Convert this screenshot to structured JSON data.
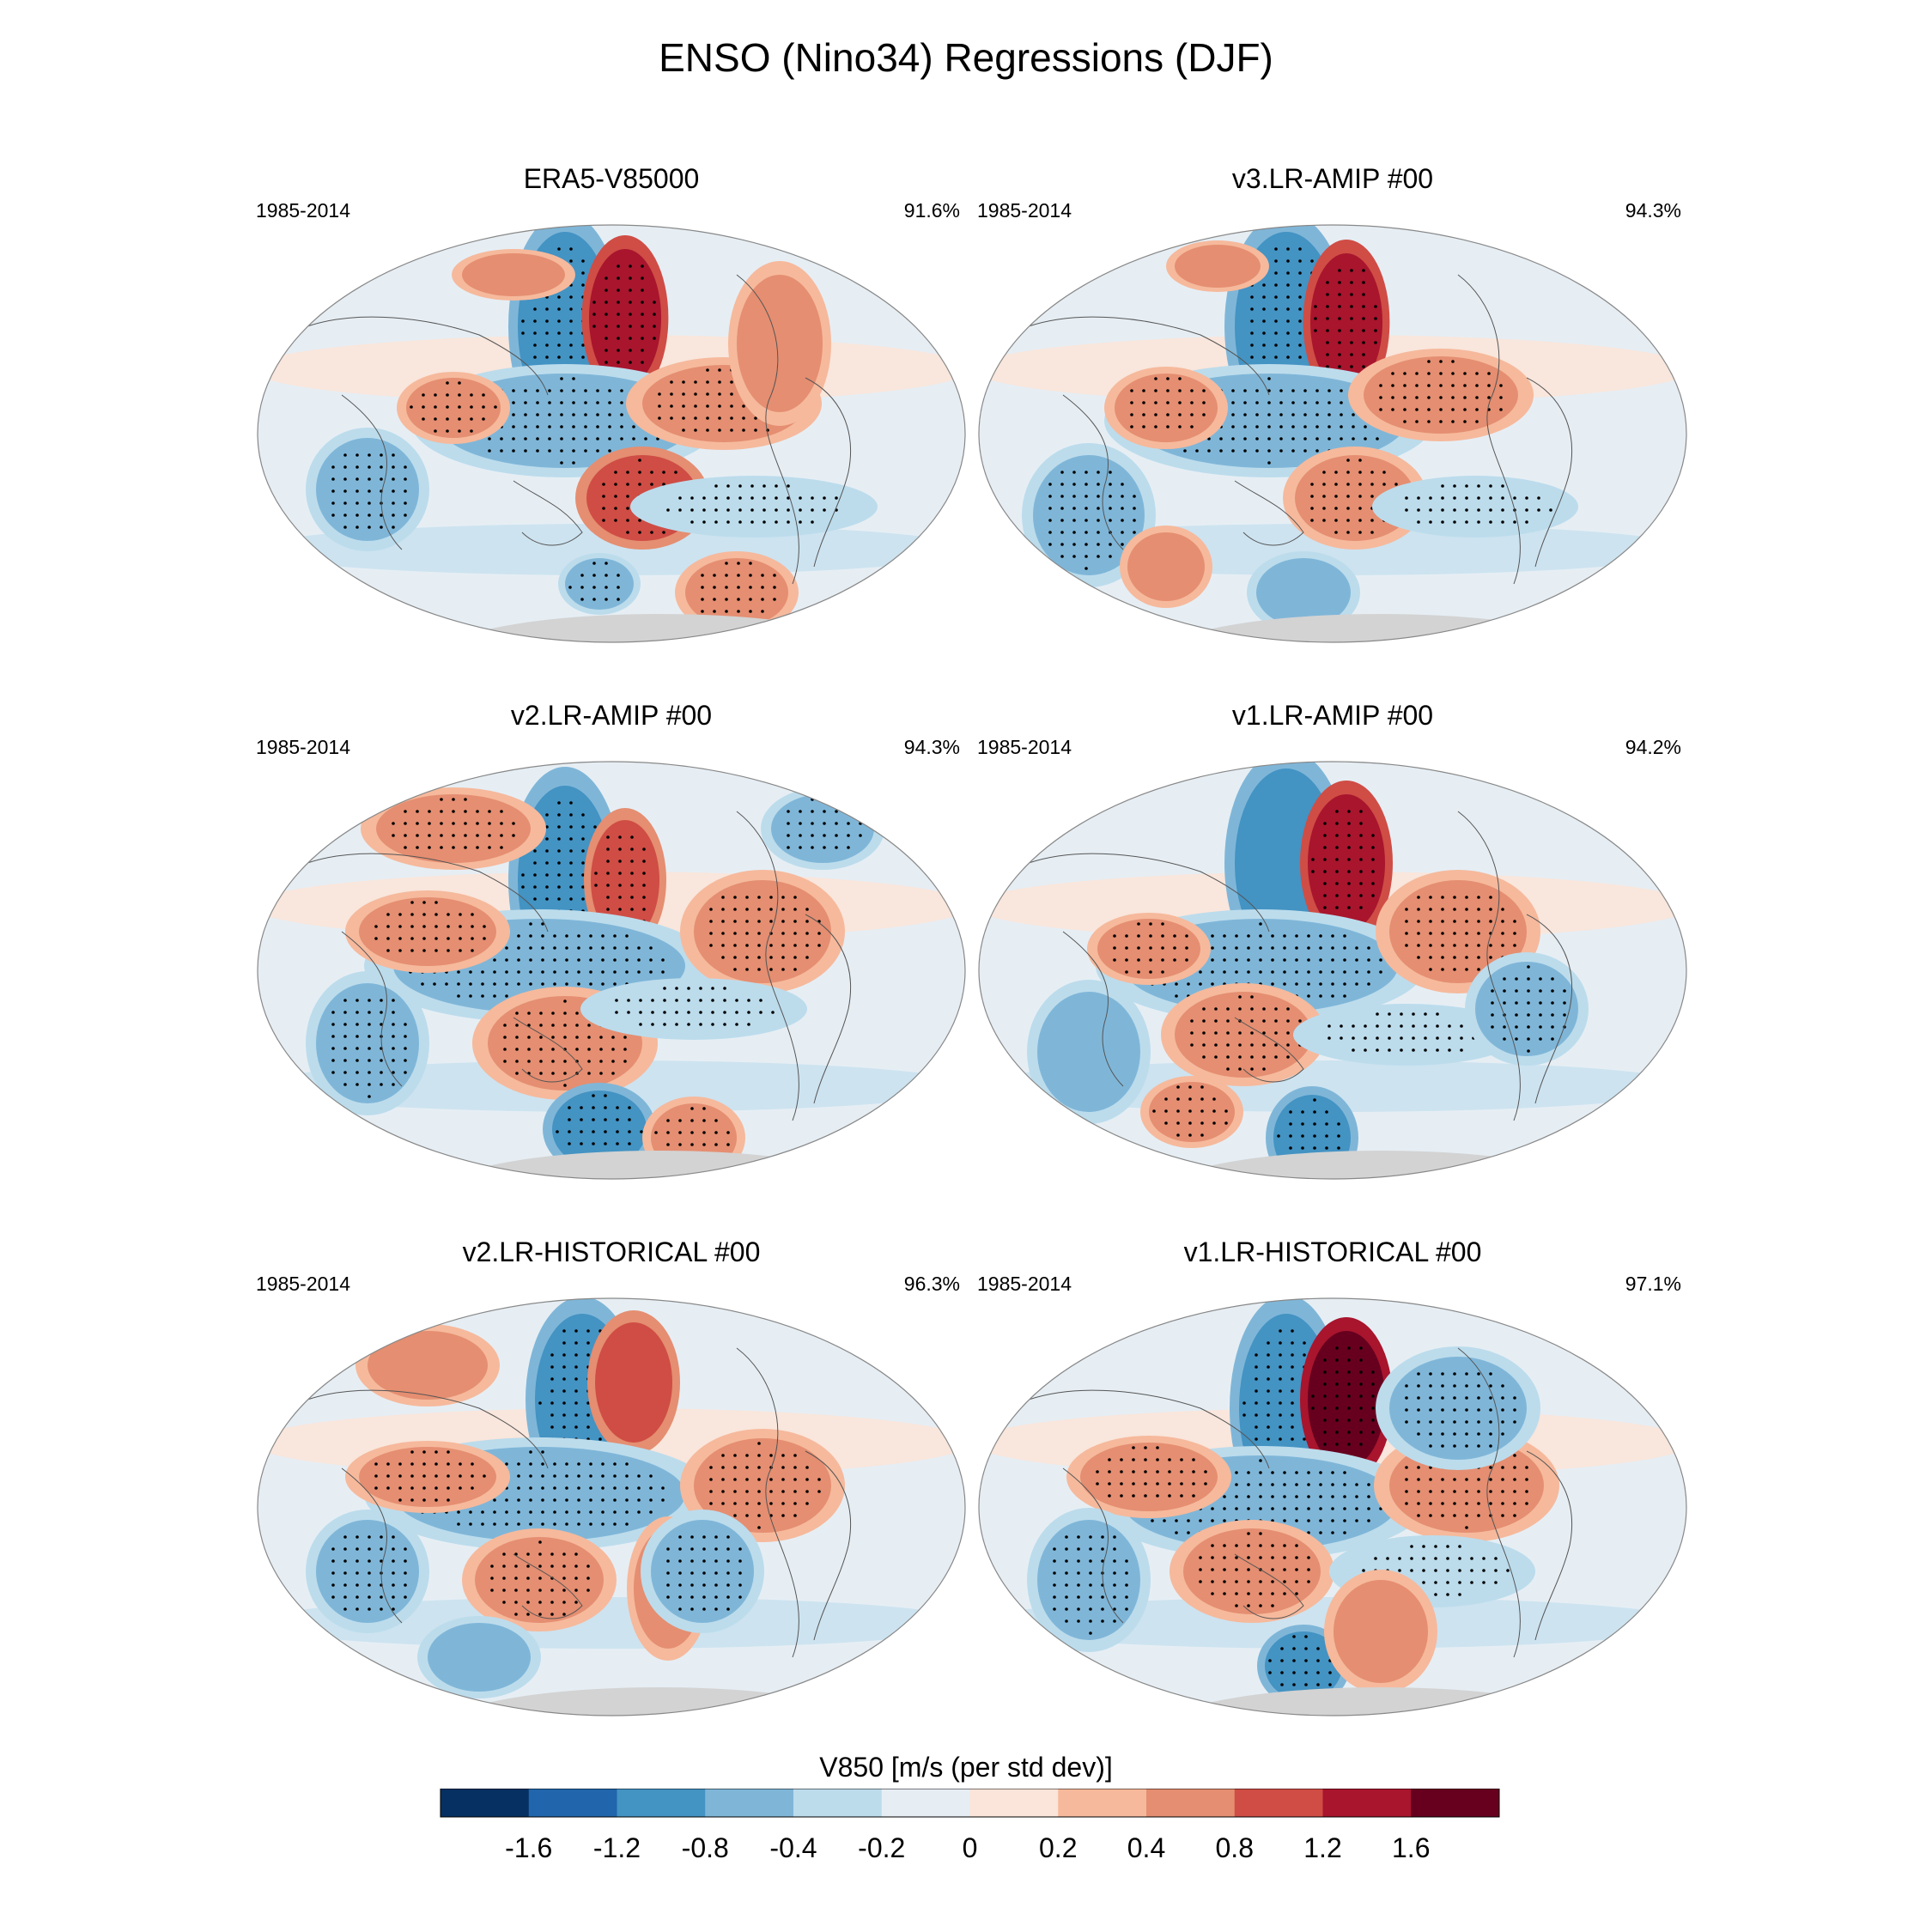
{
  "chart_data": {
    "type": "map-panels",
    "title": "ENSO (Nino34) Regressions (DJF)",
    "variable_label": "V850 [m/s (per std dev)]",
    "colorbar": {
      "levels": [
        -1.6,
        -1.2,
        -0.8,
        -0.4,
        -0.2,
        0,
        0.2,
        0.4,
        0.8,
        1.2,
        1.6
      ],
      "tick_labels": [
        "-1.6",
        "-1.2",
        "-0.8",
        "-0.4",
        "-0.2",
        "0",
        "0.2",
        "0.4",
        "0.8",
        "1.2",
        "1.6"
      ],
      "colors": [
        "#053061",
        "#2166ac",
        "#4393c3",
        "#7fb6d8",
        "#bcdcec",
        "#e6eef4",
        "#fbe4d9",
        "#f6b99c",
        "#e58e71",
        "#cf4d45",
        "#a8152d",
        "#67001f"
      ]
    },
    "panels": [
      {
        "title": "ERA5-V85000",
        "period": "1985-2014",
        "pattern_correlation": "91.6%"
      },
      {
        "title": "v3.LR-AMIP  #00",
        "period": "1985-2014",
        "pattern_correlation": "94.3%"
      },
      {
        "title": "v2.LR-AMIP  #00",
        "period": "1985-2014",
        "pattern_correlation": "94.3%"
      },
      {
        "title": "v1.LR-AMIP  #00",
        "period": "1985-2014",
        "pattern_correlation": "94.2%"
      },
      {
        "title": "v2.LR-HISTORICAL  #00",
        "period": "1985-2014",
        "pattern_correlation": "96.3%"
      },
      {
        "title": "v1.LR-HISTORICAL  #00",
        "period": "1985-2014",
        "pattern_correlation": "97.1%"
      }
    ]
  }
}
